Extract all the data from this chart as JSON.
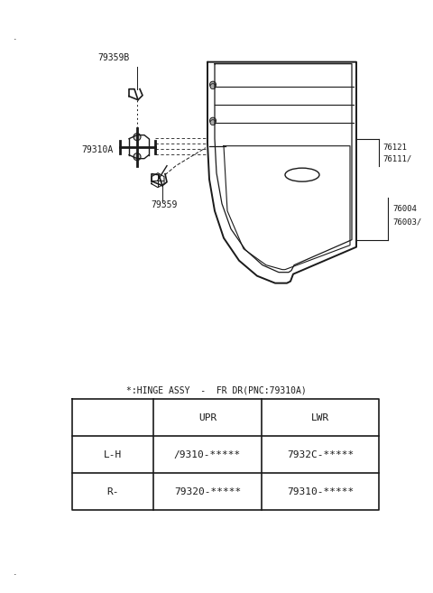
{
  "bg_color": "#ffffff",
  "line_color": "#1a1a1a",
  "title": "*:HINGE ASSY  -  FR DR(PNC:79310A)",
  "table_header": [
    "",
    "UPR",
    "LWR"
  ],
  "table_row1": [
    "L-H",
    "/9310-*****",
    "7932C-*****"
  ],
  "table_row2_col0": "R-",
  "table_row2_col1": "79320-*****",
  "table_row2_col2": "79310-*****",
  "label_79359": "79359",
  "label_79310A": "79310A",
  "label_79359B": "79359B",
  "label_top_right1": "76003/",
  "label_top_right2": "76004",
  "label_mid_right1": "76111/",
  "label_mid_right2": "76121"
}
